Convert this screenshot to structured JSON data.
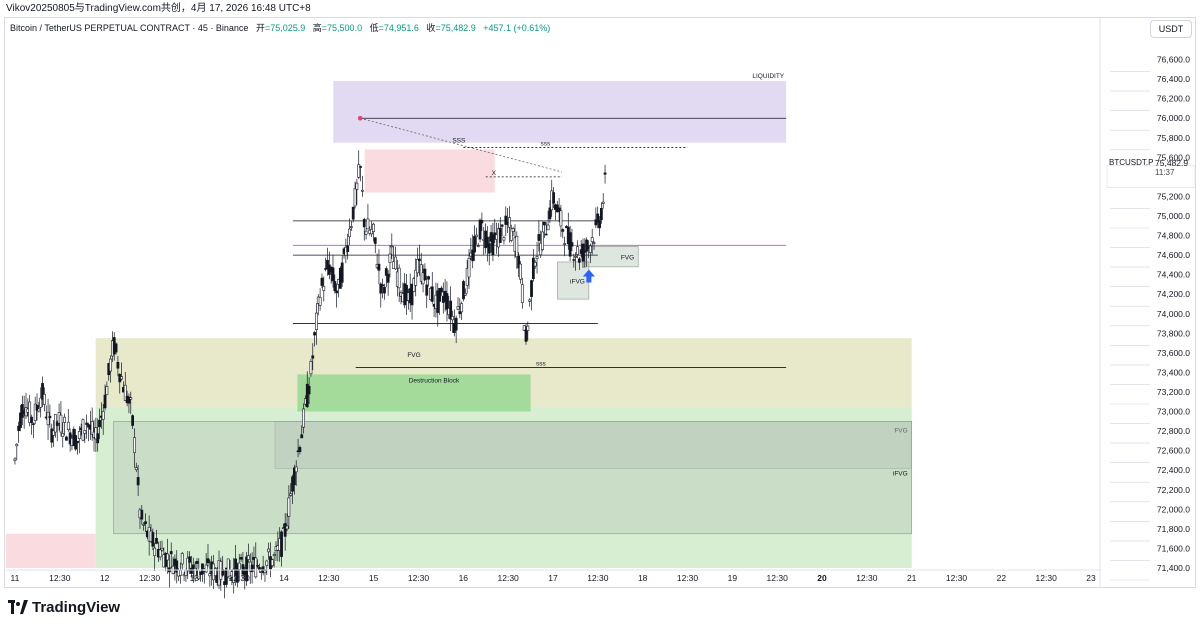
{
  "header": {
    "publish_line": "Vikov20250805与TradingView.com共创，4月 17, 2026 16:48 UTC+8"
  },
  "legend": {
    "symbol": "Bitcoin / TetherUS PERPETUAL CONTRACT · 45 · Binance",
    "open_label": "开",
    "open_value": "=75,025.9",
    "high_label": "高",
    "high_value": "=75,500.0",
    "low_label": "低",
    "low_value": "=74,951.6",
    "close_label": "收",
    "close_value": "=75,482.9",
    "change": "+457.1 (+0.61%)"
  },
  "toolbar": {
    "currency": "USDT"
  },
  "price_tag": {
    "symbol": "BTCUSDT.P",
    "value": "75,482.9",
    "countdown": "11:37"
  },
  "footer": {
    "brand": "TradingView"
  },
  "colors": {
    "up": "#089981",
    "candle": "#131722",
    "liquidity_zone": "#d7cdee",
    "supply_zone": "#f8d0d6",
    "demand_zone": "#dfe2b8",
    "green_zone": "#c9e8c4",
    "fvg_box": "#b9c7b8",
    "destruction_block": "#8fd68a",
    "magenta_line": "#c04fd1",
    "signal_arrow": "#2962ff",
    "marker": "#e2446b"
  },
  "chart_data": {
    "type": "candlestick",
    "symbol": "BTCUSDT.P",
    "exchange": "Binance",
    "timeframe": "45",
    "ylim": [
      71400,
      76800
    ],
    "y_ticks": [
      "76,600.0",
      "76,400.0",
      "76,200.0",
      "76,000.0",
      "75,800.0",
      "75,600.0",
      "75,400.0",
      "75,200.0",
      "75,000.0",
      "74,800.0",
      "74,600.0",
      "74,400.0",
      "74,200.0",
      "74,000.0",
      "73,800.0",
      "73,600.0",
      "73,400.0",
      "73,200.0",
      "73,000.0",
      "72,800.0",
      "72,600.0",
      "72,400.0",
      "72,200.0",
      "72,000.0",
      "71,800.0",
      "71,600.0",
      "71,400.0"
    ],
    "x_ticks": [
      {
        "label": "11",
        "day": 11.0,
        "bold": false
      },
      {
        "label": "12:30",
        "day": 11.5,
        "bold": false
      },
      {
        "label": "12",
        "day": 12.0,
        "bold": false
      },
      {
        "label": "12:30",
        "day": 12.5,
        "bold": false
      },
      {
        "label": "13",
        "day": 13.0,
        "bold": false
      },
      {
        "label": "12:30",
        "day": 13.5,
        "bold": false
      },
      {
        "label": "14",
        "day": 14.0,
        "bold": false
      },
      {
        "label": "12:30",
        "day": 14.5,
        "bold": false
      },
      {
        "label": "15",
        "day": 15.0,
        "bold": false
      },
      {
        "label": "12:30",
        "day": 15.5,
        "bold": false
      },
      {
        "label": "16",
        "day": 16.0,
        "bold": false
      },
      {
        "label": "12:30",
        "day": 16.5,
        "bold": false
      },
      {
        "label": "17",
        "day": 17.0,
        "bold": false
      },
      {
        "label": "12:30",
        "day": 17.5,
        "bold": false
      },
      {
        "label": "18",
        "day": 18.0,
        "bold": false
      },
      {
        "label": "12:30",
        "day": 18.5,
        "bold": false
      },
      {
        "label": "19",
        "day": 19.0,
        "bold": false
      },
      {
        "label": "12:30",
        "day": 19.5,
        "bold": false
      },
      {
        "label": "20",
        "day": 20.0,
        "bold": true
      },
      {
        "label": "12:30",
        "day": 20.5,
        "bold": false
      },
      {
        "label": "21",
        "day": 21.0,
        "bold": false
      },
      {
        "label": "12:30",
        "day": 21.5,
        "bold": false
      },
      {
        "label": "22",
        "day": 22.0,
        "bold": false
      },
      {
        "label": "12:30",
        "day": 22.5,
        "bold": false
      },
      {
        "label": "23",
        "day": 23.0,
        "bold": false
      }
    ],
    "xlim_days": [
      10.9,
      23.1
    ],
    "last_price": 75482.9,
    "price_path": [
      [
        11.0,
        72500
      ],
      [
        11.05,
        72900
      ],
      [
        11.1,
        73100
      ],
      [
        11.2,
        72900
      ],
      [
        11.3,
        73200
      ],
      [
        11.4,
        72800
      ],
      [
        11.5,
        72900
      ],
      [
        11.6,
        72800
      ],
      [
        11.7,
        72700
      ],
      [
        11.8,
        72900
      ],
      [
        11.9,
        72700
      ],
      [
        12.0,
        73100
      ],
      [
        12.1,
        73700
      ],
      [
        12.15,
        73500
      ],
      [
        12.2,
        73300
      ],
      [
        12.3,
        73000
      ],
      [
        12.35,
        72500
      ],
      [
        12.4,
        71900
      ],
      [
        12.5,
        71700
      ],
      [
        12.6,
        71600
      ],
      [
        12.7,
        71500
      ],
      [
        12.8,
        71450
      ],
      [
        13.0,
        71400
      ],
      [
        13.3,
        71350
      ],
      [
        13.6,
        71400
      ],
      [
        13.9,
        71500
      ],
      [
        14.0,
        71700
      ],
      [
        14.1,
        72300
      ],
      [
        14.2,
        72800
      ],
      [
        14.3,
        73400
      ],
      [
        14.4,
        74200
      ],
      [
        14.5,
        74500
      ],
      [
        14.6,
        74200
      ],
      [
        14.7,
        74700
      ],
      [
        14.8,
        75200
      ],
      [
        14.85,
        75500
      ],
      [
        14.9,
        74900
      ],
      [
        15.0,
        74800
      ],
      [
        15.1,
        74200
      ],
      [
        15.2,
        74600
      ],
      [
        15.3,
        74300
      ],
      [
        15.4,
        74100
      ],
      [
        15.5,
        74500
      ],
      [
        15.6,
        74300
      ],
      [
        15.7,
        74100
      ],
      [
        15.8,
        74200
      ],
      [
        15.9,
        73900
      ],
      [
        16.0,
        74200
      ],
      [
        16.1,
        74600
      ],
      [
        16.2,
        74900
      ],
      [
        16.3,
        74700
      ],
      [
        16.4,
        74800
      ],
      [
        16.5,
        74900
      ],
      [
        16.6,
        74700
      ],
      [
        16.65,
        74300
      ],
      [
        16.7,
        73700
      ],
      [
        16.75,
        74200
      ],
      [
        16.8,
        74600
      ],
      [
        16.9,
        74800
      ],
      [
        17.0,
        75200
      ],
      [
        17.1,
        74900
      ],
      [
        17.2,
        74700
      ],
      [
        17.3,
        74600
      ],
      [
        17.4,
        74700
      ],
      [
        17.5,
        74900
      ],
      [
        17.55,
        75100
      ],
      [
        17.6,
        75450
      ]
    ],
    "zones": [
      {
        "label": "LIQUIDITY",
        "x0": 14.55,
        "x1": 19.6,
        "y0": 75750,
        "y1": 76380,
        "color_key": "liquidity_zone"
      },
      {
        "label": "",
        "x0": 14.9,
        "x1": 16.35,
        "y0": 75240,
        "y1": 75680,
        "color_key": "supply_zone"
      },
      {
        "label": "",
        "x0": 11.9,
        "x1": 21.0,
        "y0": 73050,
        "y1": 73750,
        "color_key": "demand_zone"
      },
      {
        "label": "",
        "x0": 11.9,
        "x1": 21.0,
        "y0": 71400,
        "y1": 73050,
        "color_key": "green_zone"
      },
      {
        "label": "FVG",
        "x0": 13.9,
        "x1": 21.0,
        "y0": 72420,
        "y1": 72900,
        "color_key": "fvg_box"
      },
      {
        "label": "iFVG",
        "x0": 12.1,
        "x1": 21.0,
        "y0": 71750,
        "y1": 72900,
        "color_key": "fvg_box"
      },
      {
        "label": "Destruction Block",
        "x0": 14.15,
        "x1": 16.75,
        "y0": 73000,
        "y1": 73380,
        "color_key": "destruction_block"
      },
      {
        "label": "FVG",
        "x0": 17.35,
        "x1": 17.95,
        "y0": 74480,
        "y1": 74690,
        "color_key": "fvg_box"
      },
      {
        "label": "iFVG",
        "x0": 17.05,
        "x1": 17.4,
        "y0": 74150,
        "y1": 74530,
        "color_key": "fvg_box"
      },
      {
        "label": "",
        "x0": 10.9,
        "x1": 11.9,
        "y0": 71400,
        "y1": 71750,
        "color_key": "supply_zone"
      }
    ],
    "levels": [
      {
        "label": "",
        "price": 76000,
        "x0": 14.85,
        "x1": 19.6,
        "color_key": "candle"
      },
      {
        "label": "",
        "price": 74700,
        "x0": 14.1,
        "x1": 19.6,
        "color_key": "magenta_line"
      },
      {
        "label": "",
        "price": 74950,
        "x0": 14.1,
        "x1": 17.5,
        "color_key": "candle"
      },
      {
        "label": "",
        "price": 74600,
        "x0": 14.1,
        "x1": 17.5,
        "color_key": "candle"
      },
      {
        "label": "",
        "price": 73900,
        "x0": 14.1,
        "x1": 17.5,
        "color_key": "candle"
      },
      {
        "label": "sss",
        "price": 73450,
        "x0": 14.8,
        "x1": 19.6,
        "color_key": "candle"
      },
      {
        "label": "sss",
        "price": 75700,
        "x0": 16.0,
        "x1": 18.5,
        "color_key": "candle"
      },
      {
        "label": "X",
        "price": 75400,
        "x0": 16.25,
        "x1": 17.1,
        "color_key": "candle"
      }
    ],
    "annotations": [
      {
        "text": "FVG",
        "day": 15.45,
        "price": 73560
      },
      {
        "text": "SSS",
        "day": 15.95,
        "price": 75750
      }
    ],
    "marker": {
      "day": 14.85,
      "price": 76000
    },
    "signal_arrow": {
      "day": 17.4,
      "price": 74350
    }
  }
}
